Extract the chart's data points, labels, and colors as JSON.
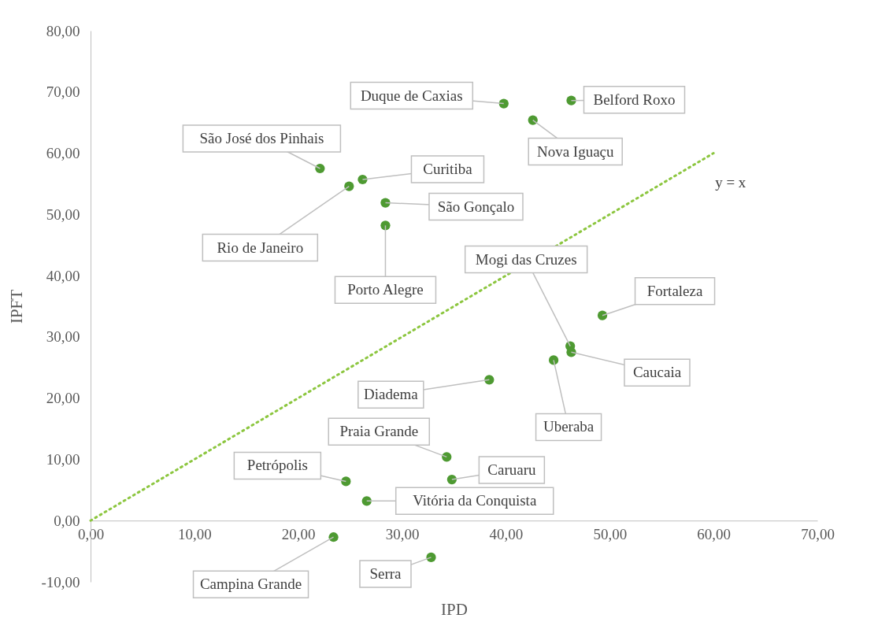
{
  "chart_data": {
    "type": "scatter",
    "xlabel": "IPD",
    "ylabel": "IPFT",
    "xlim": [
      0,
      70
    ],
    "ylim": [
      -10,
      80
    ],
    "xticks": [
      {
        "value": 0,
        "label": "0,00"
      },
      {
        "value": 10,
        "label": "10,00"
      },
      {
        "value": 20,
        "label": "20,00"
      },
      {
        "value": 30,
        "label": "30,00"
      },
      {
        "value": 40,
        "label": "40,00"
      },
      {
        "value": 50,
        "label": "50,00"
      },
      {
        "value": 60,
        "label": "60,00"
      },
      {
        "value": 70,
        "label": "70,00"
      }
    ],
    "yticks": [
      {
        "value": -10,
        "label": "-10,00"
      },
      {
        "value": 0,
        "label": "0,00"
      },
      {
        "value": 10,
        "label": "10,00"
      },
      {
        "value": 20,
        "label": "20,00"
      },
      {
        "value": 30,
        "label": "30,00"
      },
      {
        "value": 40,
        "label": "40,00"
      },
      {
        "value": 50,
        "label": "50,00"
      },
      {
        "value": 60,
        "label": "60,00"
      },
      {
        "value": 70,
        "label": "70,00"
      },
      {
        "value": 80,
        "label": "80,00"
      }
    ],
    "grid": false,
    "legend": false,
    "marker": "circle",
    "series": [
      {
        "color": "#4e9a32",
        "x": [
          39.8,
          46.3,
          42.6,
          22.1,
          26.2,
          24.9,
          28.4,
          28.4,
          46.2,
          46.3,
          49.3,
          44.6,
          38.4,
          34.3,
          34.8,
          24.6,
          26.6,
          23.4,
          32.8
        ],
        "values": [
          68.1,
          68.6,
          65.4,
          57.5,
          55.7,
          54.6,
          51.9,
          48.2,
          28.5,
          27.5,
          33.5,
          26.2,
          23.0,
          10.4,
          6.7,
          6.4,
          3.2,
          -2.7,
          -6.0
        ]
      },
      {
        "type": "line",
        "name": "y = x",
        "color": "#8cc63f",
        "line_style": "dotted",
        "marker": "none",
        "x": [
          0,
          60
        ],
        "values": [
          0,
          60
        ]
      }
    ],
    "annotations": [
      {
        "text": "Duque de Caxias",
        "x": 39.8,
        "y": 68.1
      },
      {
        "text": "Belford Roxo",
        "x": 46.3,
        "y": 68.6
      },
      {
        "text": "Nova Iguaçu",
        "x": 42.6,
        "y": 65.4
      },
      {
        "text": "São José dos Pinhais",
        "x": 22.1,
        "y": 57.5
      },
      {
        "text": "Curitiba",
        "x": 26.2,
        "y": 55.7
      },
      {
        "text": "Rio de Janeiro",
        "x": 24.9,
        "y": 54.6
      },
      {
        "text": "São Gonçalo",
        "x": 28.4,
        "y": 51.9
      },
      {
        "text": "Porto Alegre",
        "x": 28.4,
        "y": 48.2
      },
      {
        "text": "Mogi das Cruzes",
        "x": 46.2,
        "y": 28.5
      },
      {
        "text": "Caucaia",
        "x": 46.3,
        "y": 27.5
      },
      {
        "text": "Fortaleza",
        "x": 49.3,
        "y": 33.5
      },
      {
        "text": "Uberaba",
        "x": 44.6,
        "y": 26.2
      },
      {
        "text": "Diadema",
        "x": 38.4,
        "y": 23.0
      },
      {
        "text": "Praia Grande",
        "x": 34.3,
        "y": 10.4
      },
      {
        "text": "Caruaru",
        "x": 34.8,
        "y": 6.7
      },
      {
        "text": "Petrópolis",
        "x": 24.6,
        "y": 6.4
      },
      {
        "text": "Vitória da Conquista",
        "x": 26.6,
        "y": 3.2
      },
      {
        "text": "Campina Grande",
        "x": 23.4,
        "y": -2.7
      },
      {
        "text": "Serra",
        "x": 32.8,
        "y": -6.0
      }
    ]
  }
}
